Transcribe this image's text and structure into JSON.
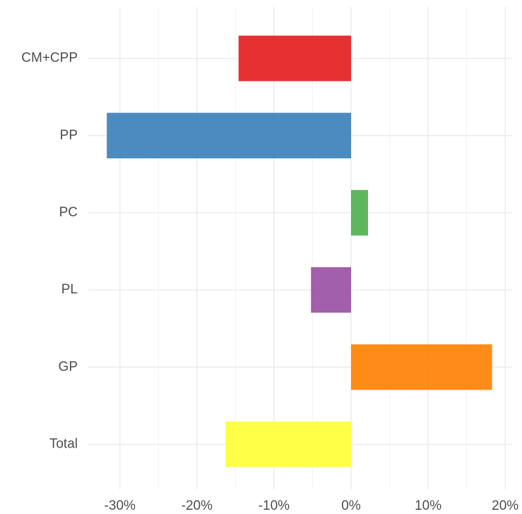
{
  "chart_data": {
    "type": "barh",
    "categories": [
      "CM+CPP",
      "PP",
      "PC",
      "PL",
      "GP",
      "Total"
    ],
    "values": [
      -14.6,
      -31.7,
      2.2,
      -5.2,
      18.3,
      -16.3
    ],
    "colors": [
      "#e41a1c",
      "#377eb8",
      "#4daf4a",
      "#984ea3",
      "#ff7f00",
      "#ffff33"
    ],
    "xlim": [
      -34.1,
      20.9
    ],
    "xticks": [
      {
        "value": -30,
        "label": "-30%"
      },
      {
        "value": -20,
        "label": "-20%"
      },
      {
        "value": -10,
        "label": "-10%"
      },
      {
        "value": 0,
        "label": "0%"
      },
      {
        "value": 10,
        "label": "10%"
      },
      {
        "value": 20,
        "label": "20%"
      }
    ],
    "xminor": [
      -25,
      -15,
      -5,
      5,
      15
    ],
    "grid": true
  }
}
